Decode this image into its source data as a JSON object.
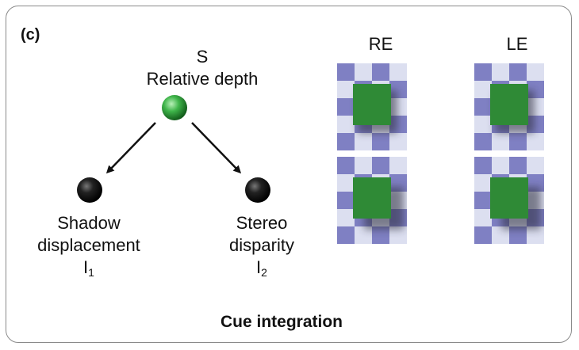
{
  "panel_label": "(c)",
  "root": {
    "symbol": "S",
    "name": "Relative depth",
    "color": "#3fb54a"
  },
  "leaves": [
    {
      "line1": "Shadow",
      "line2": "displacement",
      "var": "I",
      "sub": "1"
    },
    {
      "line1": "Stereo",
      "line2": "disparity",
      "var": "I",
      "sub": "2"
    }
  ],
  "eye_labels": [
    "RE",
    "LE"
  ],
  "caption": "Cue integration",
  "colors": {
    "checker_light": "#dcdff0",
    "checker_dark": "#7f80c3",
    "square": "#2f8a36",
    "node": "#111111"
  }
}
